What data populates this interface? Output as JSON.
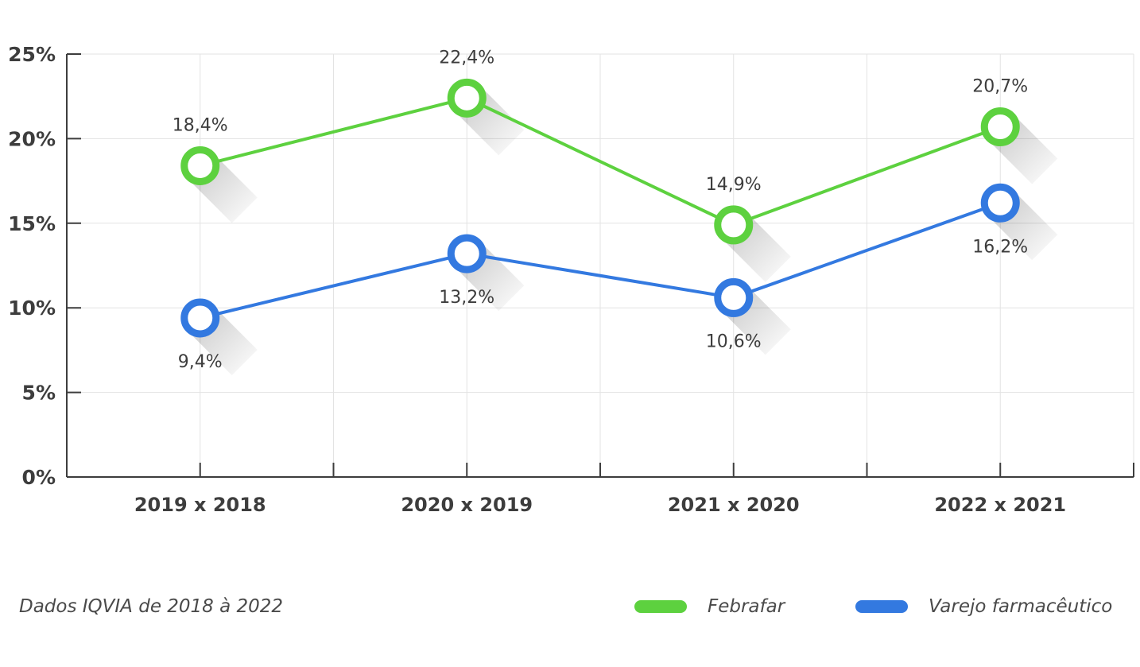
{
  "chart_data": {
    "type": "line",
    "categories": [
      "2019 x 2018",
      "2020 x 2019",
      "2021 x 2020",
      "2022 x 2021"
    ],
    "series": [
      {
        "name": "Febrafar",
        "values": [
          18.4,
          22.4,
          14.9,
          20.7
        ],
        "color": "#5dd13f",
        "labels": [
          "18,4%",
          "22,4%",
          "14,9%",
          "20,7%"
        ]
      },
      {
        "name": "Varejo farmacêutico",
        "values": [
          9.4,
          13.2,
          10.6,
          16.2
        ],
        "color": "#3379e0",
        "labels": [
          "9,4%",
          "13,2%",
          "10,6%",
          "16,2%"
        ]
      }
    ],
    "ylim": [
      0,
      25
    ],
    "yticks": [
      0,
      5,
      10,
      15,
      20,
      25
    ],
    "ytick_labels": [
      "0%",
      "5%",
      "10%",
      "15%",
      "20%",
      "25%"
    ],
    "grid": true,
    "legend_position": "bottom-right"
  },
  "footer": {
    "note": "Dados IQVIA de 2018 à 2022"
  }
}
